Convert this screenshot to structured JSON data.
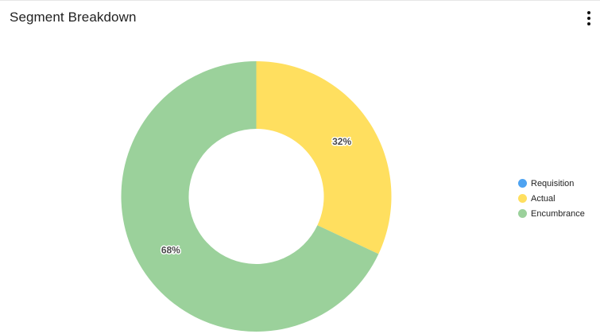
{
  "widget": {
    "title": "Segment Breakdown",
    "menu_icon": "more-vertical-icon"
  },
  "chart_data": {
    "type": "pie",
    "variant": "donut",
    "categories": [
      "Requisition",
      "Actual",
      "Encumbrance"
    ],
    "values": [
      0,
      32,
      68
    ],
    "value_labels": [
      "",
      "32%",
      "68%"
    ],
    "colors": [
      "#4ea3f1",
      "#ffdf5f",
      "#9bd19b"
    ],
    "legend": "right",
    "start": "top",
    "direction": "clockwise"
  }
}
